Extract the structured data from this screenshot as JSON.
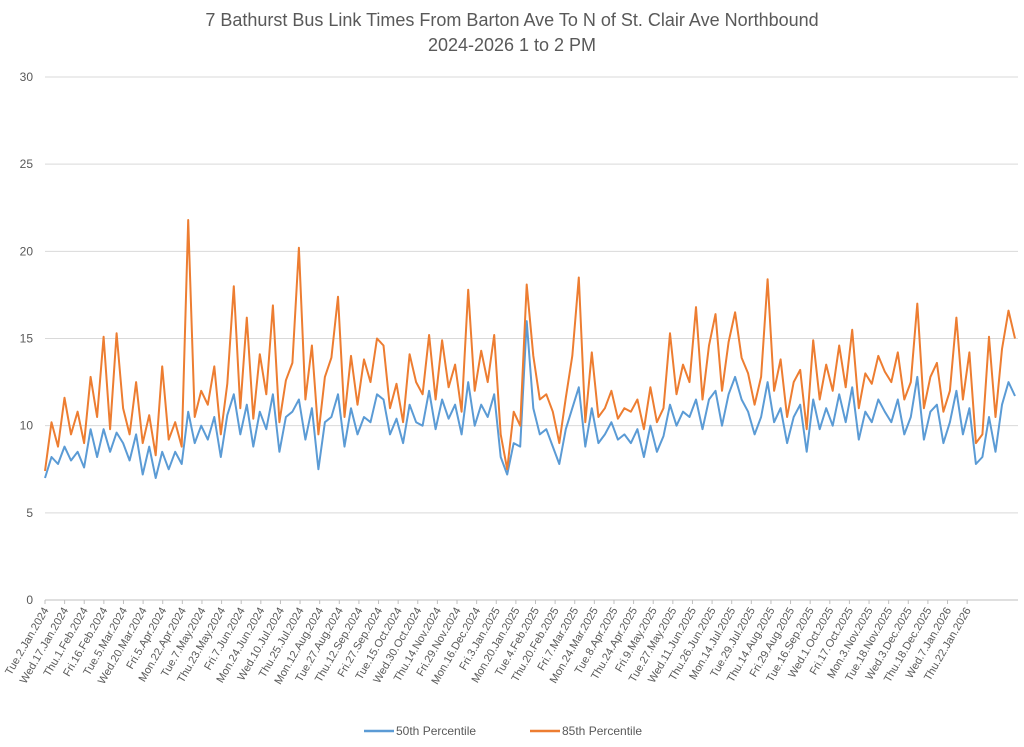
{
  "chart_data": {
    "type": "line",
    "title": "7 Bathurst Bus Link Times From Barton Ave To N of St. Clair Ave Northbound",
    "subtitle": "2024-2026 1 to 2 PM",
    "xlabel": "",
    "ylabel": "",
    "ylim": [
      0,
      30
    ],
    "yticks": [
      0,
      5,
      10,
      15,
      20,
      25,
      30
    ],
    "grid": true,
    "legend_position": "bottom",
    "x_tick_labels": [
      "Tue.2.Jan.2024",
      "Wed.17.Jan.2024",
      "Thu.1.Feb.2024",
      "Fri.16.Feb.2024",
      "Tue.5.Mar.2024",
      "Wed.20.Mar.2024",
      "Fri.5.Apr.2024",
      "Mon.22.Apr.2024",
      "Tue.7.May.2024",
      "Thu.23.May.2024",
      "Fri.7.Jun.2024",
      "Mon.24.Jun.2024",
      "Wed.10.Jul.2024",
      "Thu.25.Jul.2024",
      "Mon.12.Aug.2024",
      "Tue.27.Aug.2024",
      "Thu.12.Sep.2024",
      "Fri.27.Sep.2024",
      "Tue.15.Oct.2024",
      "Wed.30.Oct.2024",
      "Thu.14.Nov.2024",
      "Fri.29.Nov.2024",
      "Mon.16.Dec.2024",
      "Fri.3.Jan.2025",
      "Mon.20.Jan.2025",
      "Tue.4.Feb.2025",
      "Thu.20.Feb.2025",
      "Fri.7.Mar.2025",
      "Mon.24.Mar.2025",
      "Tue.8.Apr.2025",
      "Thu.24.Apr.2025",
      "Fri.9.May.2025",
      "Tue.27.May.2025",
      "Wed.11.Jun.2025",
      "Thu.26.Jun.2025",
      "Mon.14.Jul.2025",
      "Tue.29.Jul.2025",
      "Thu.14.Aug.2025",
      "Fri.29.Aug.2025",
      "Tue.16.Sep.2025",
      "Wed.1.Oct.2025",
      "Fri.17.Oct.2025",
      "Mon.3.Nov.2025",
      "Tue.18.Nov.2025",
      "Wed.3.Dec.2025",
      "Thu.18.Dec.2025",
      "Wed.7.Jan.2026",
      "Thu.22.Jan.2026"
    ],
    "series": [
      {
        "name": "50th Percentile",
        "color": "#5b9bd5",
        "values": [
          7.0,
          8.2,
          7.8,
          8.8,
          8.0,
          8.5,
          7.6,
          9.8,
          8.2,
          9.8,
          8.5,
          9.6,
          9.0,
          8.0,
          9.5,
          7.2,
          8.8,
          7.0,
          8.5,
          7.5,
          8.5,
          7.8,
          10.8,
          9.0,
          10.0,
          9.2,
          10.5,
          8.2,
          10.6,
          11.8,
          9.5,
          11.2,
          8.8,
          10.8,
          9.8,
          11.8,
          8.5,
          10.5,
          10.8,
          11.5,
          9.2,
          11.0,
          7.5,
          10.2,
          10.5,
          11.8,
          8.8,
          11.0,
          9.5,
          10.5,
          10.2,
          11.8,
          11.5,
          9.5,
          10.4,
          9.0,
          11.2,
          10.2,
          10.0,
          12.0,
          9.8,
          11.5,
          10.4,
          11.2,
          9.5,
          12.5,
          10.0,
          11.2,
          10.5,
          11.8,
          8.2,
          7.2,
          9.0,
          8.8,
          16.0,
          11.0,
          9.5,
          9.8,
          8.8,
          7.8,
          9.8,
          11.0,
          12.2,
          8.8,
          11.0,
          9.0,
          9.5,
          10.2,
          9.2,
          9.5,
          9.0,
          9.8,
          8.2,
          10.0,
          8.5,
          9.4,
          11.2,
          10.0,
          10.8,
          10.5,
          11.5,
          9.8,
          11.5,
          12.0,
          10.0,
          11.8,
          12.8,
          11.5,
          10.8,
          9.5,
          10.5,
          12.5,
          10.2,
          11.0,
          9.0,
          10.5,
          11.2,
          8.5,
          11.5,
          9.8,
          11.0,
          10.0,
          11.8,
          10.2,
          12.2,
          9.2,
          10.8,
          10.2,
          11.5,
          10.8,
          10.2,
          11.5,
          9.5,
          10.5,
          12.8,
          9.2,
          10.8,
          11.2,
          9.0,
          10.2,
          12.0,
          9.5,
          11.0,
          7.8,
          8.2,
          10.5,
          8.5,
          11.2,
          12.5,
          11.7
        ]
      },
      {
        "name": "85th Percentile",
        "color": "#ed7d31",
        "values": [
          7.4,
          10.2,
          8.8,
          11.6,
          9.5,
          10.8,
          9.0,
          12.8,
          10.5,
          15.1,
          9.8,
          15.3,
          11.0,
          9.5,
          12.5,
          9.0,
          10.6,
          8.3,
          13.4,
          9.2,
          10.2,
          8.8,
          21.8,
          10.5,
          12.0,
          11.2,
          13.4,
          9.5,
          12.4,
          18.0,
          11.0,
          16.2,
          10.4,
          14.1,
          11.8,
          16.9,
          10.2,
          12.6,
          13.6,
          20.2,
          11.5,
          14.6,
          9.5,
          12.8,
          13.9,
          17.4,
          10.5,
          14.0,
          11.2,
          13.8,
          12.5,
          15.0,
          14.6,
          11.0,
          12.4,
          10.2,
          14.1,
          12.5,
          11.8,
          15.2,
          11.5,
          14.9,
          12.2,
          13.5,
          10.8,
          17.8,
          12.0,
          14.3,
          12.5,
          15.2,
          9.5,
          7.5,
          10.8,
          10.0,
          18.1,
          14.0,
          11.5,
          11.8,
          10.8,
          9.0,
          11.6,
          14.0,
          18.5,
          10.2,
          14.2,
          10.5,
          11.0,
          12.0,
          10.4,
          11.0,
          10.8,
          11.5,
          9.8,
          12.2,
          10.2,
          11.0,
          15.3,
          11.8,
          13.5,
          12.5,
          16.8,
          11.5,
          14.6,
          16.4,
          12.0,
          14.8,
          16.5,
          13.9,
          13.0,
          11.2,
          12.8,
          18.4,
          12.0,
          13.8,
          10.5,
          12.5,
          13.2,
          9.8,
          14.9,
          11.5,
          13.5,
          12.0,
          14.6,
          12.2,
          15.5,
          11.0,
          13.0,
          12.4,
          14.0,
          13.1,
          12.5,
          14.2,
          11.5,
          12.5,
          17.0,
          11.0,
          12.8,
          13.6,
          10.8,
          12.0,
          16.2,
          11.5,
          14.2,
          9.0,
          9.5,
          15.1,
          10.5,
          14.4,
          16.6,
          15.0
        ]
      }
    ]
  }
}
